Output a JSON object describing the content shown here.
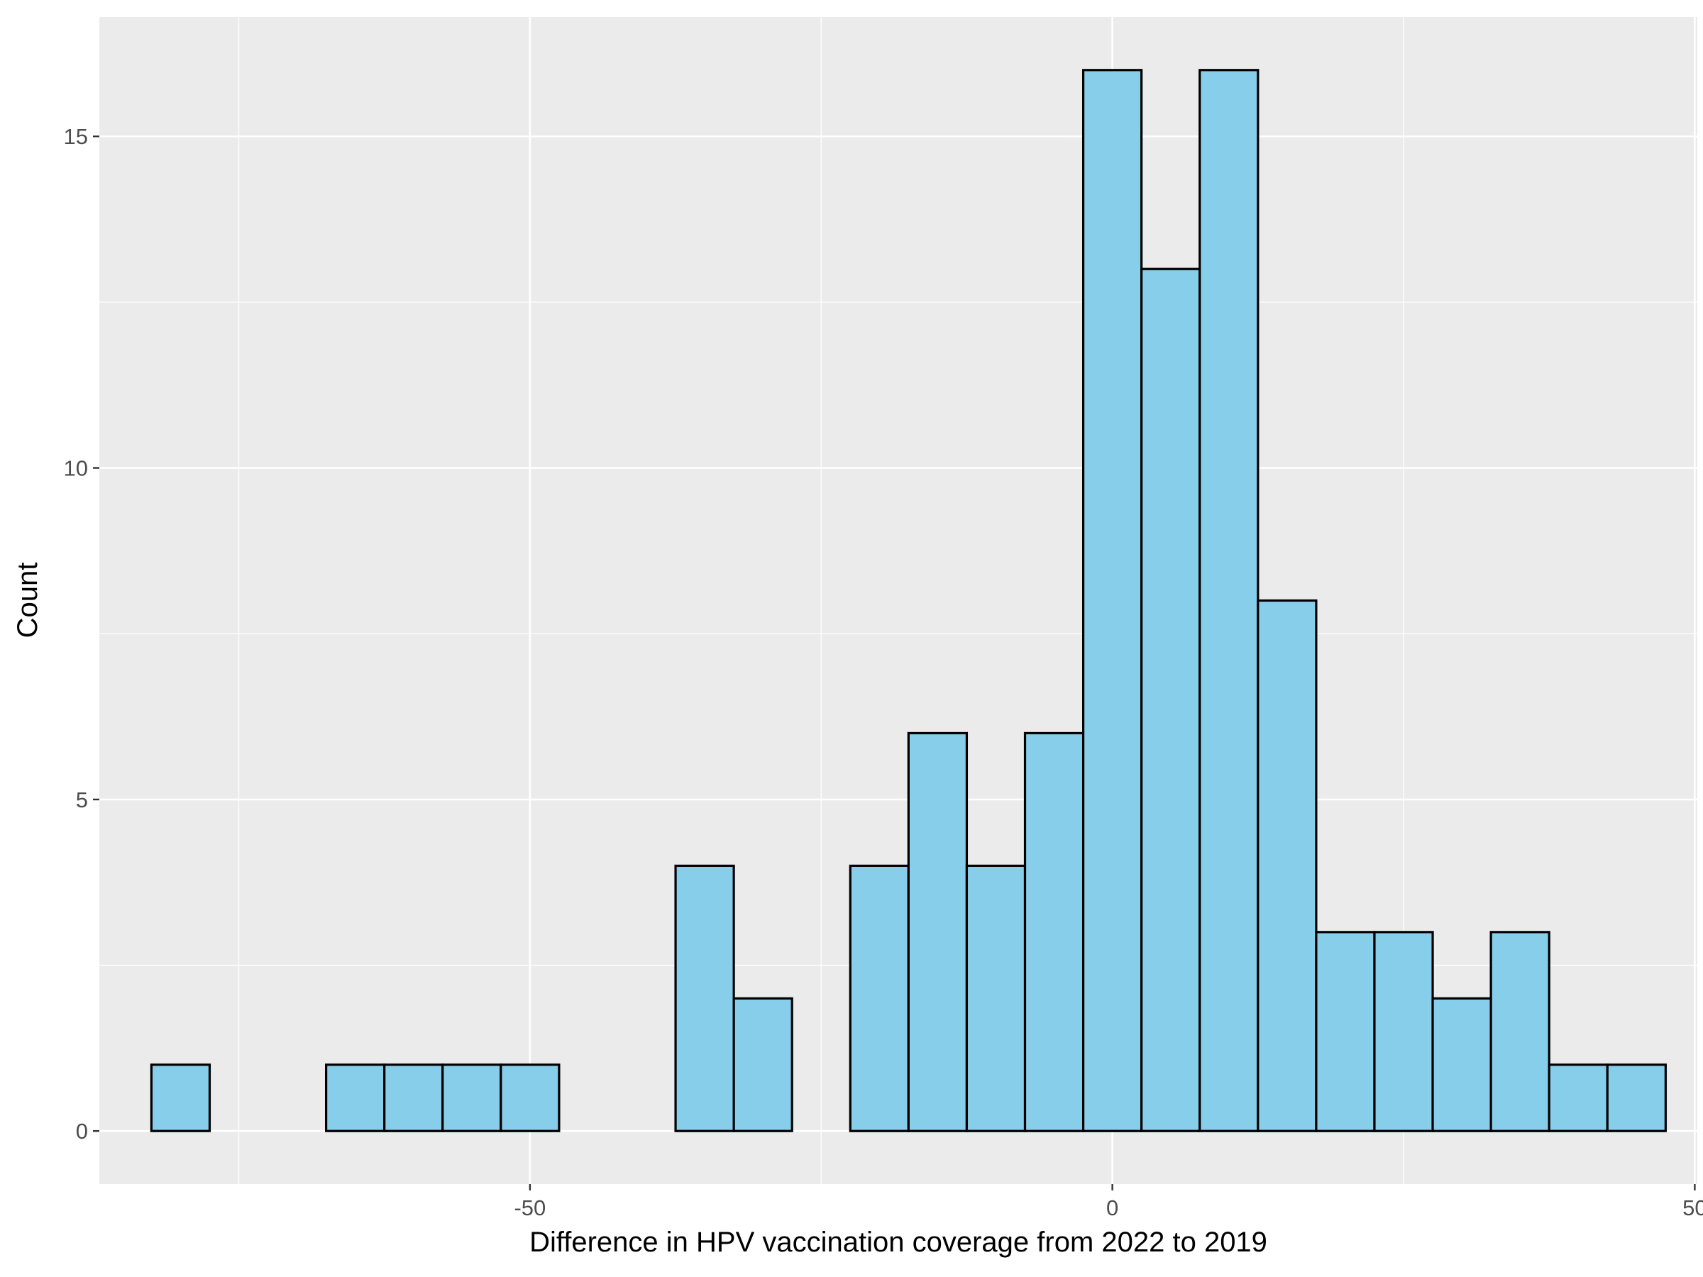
{
  "chart_data": {
    "type": "bar",
    "subtype": "histogram",
    "title": "",
    "xlabel": "Difference in HPV vaccination coverage from 2022 to 2019",
    "ylabel": "Count",
    "bin_width": 5,
    "bin_centers": [
      -80,
      -75,
      -70,
      -65,
      -60,
      -55,
      -50,
      -45,
      -40,
      -35,
      -30,
      -25,
      -20,
      -15,
      -10,
      -5,
      0,
      5,
      10,
      15,
      20,
      25,
      30,
      35,
      40,
      45
    ],
    "values": [
      1,
      0,
      0,
      1,
      1,
      1,
      1,
      0,
      0,
      4,
      2,
      0,
      4,
      6,
      4,
      6,
      16,
      13,
      16,
      8,
      3,
      3,
      2,
      3,
      1,
      1
    ],
    "xlim": [
      -86.97,
      50.22
    ],
    "ylim": [
      -0.8,
      16.8
    ],
    "x_ticks": [
      -50,
      0,
      50
    ],
    "x_tick_labels": [
      "-50",
      "0",
      "50"
    ],
    "y_ticks": [
      0,
      5,
      10,
      15
    ],
    "y_tick_labels": [
      "0",
      "5",
      "10",
      "15"
    ],
    "grid": true,
    "legend": "none",
    "colors": {
      "bar_fill": "#87CEEB",
      "bar_stroke": "#000000",
      "panel_background": "#EBEBEB",
      "grid": "#FFFFFF"
    }
  }
}
